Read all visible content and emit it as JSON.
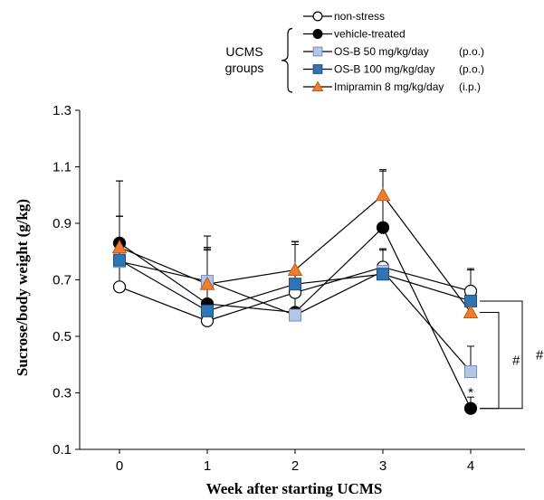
{
  "chart_data": {
    "type": "line",
    "xlabel": "Week after starting UCMS",
    "ylabel": "Sucrose/body weight (g/kg)",
    "x": [
      0,
      1,
      2,
      3,
      4
    ],
    "xlim": [
      -0.5,
      4.5
    ],
    "ylim": [
      0.1,
      1.3
    ],
    "yticks": [
      "0.1",
      "0.3",
      "0.5",
      "0.7",
      "0.9",
      "1.1",
      "1.3"
    ],
    "group_label_line1": "UCMS",
    "group_label_line2": "groups",
    "series": [
      {
        "name": "non-stress",
        "suffix": "",
        "marker": "circle-open",
        "fill": "#ffffff",
        "stroke": "#000000",
        "values": [
          0.675,
          0.555,
          0.655,
          0.745,
          0.66
        ],
        "err": [
          0.25,
          0.25,
          0.18,
          0.06,
          0.08
        ]
      },
      {
        "name": "vehicle-treated",
        "suffix": "",
        "marker": "circle-filled",
        "fill": "#000000",
        "stroke": "#000000",
        "values": [
          0.83,
          0.615,
          0.585,
          0.885,
          0.245
        ],
        "err": [
          0.22,
          0.2,
          0.25,
          0.2,
          0.04
        ]
      },
      {
        "name": "OS-B 50 mg/kg/day",
        "suffix": "(p.o.)",
        "marker": "square",
        "fill": "#b4c7e7",
        "stroke": "#6f8fbf",
        "values": [
          0.765,
          0.695,
          0.575,
          0.73,
          0.375
        ],
        "err": [
          0.16,
          0.16,
          0.26,
          0.08,
          0.09
        ]
      },
      {
        "name": "OS-B 100 mg/kg/day",
        "suffix": "(p.o.)",
        "marker": "square",
        "fill": "#2e75b6",
        "stroke": "#1f4e79",
        "values": [
          0.77,
          0.59,
          0.685,
          0.72,
          0.625
        ],
        "err": [
          0.28,
          0.22,
          0.14,
          0.09,
          0.11
        ]
      },
      {
        "name": "Imipramin 8 mg/kg/day",
        "suffix": "(i.p.)",
        "marker": "triangle",
        "fill": "#ed7d31",
        "stroke": "#c55a11",
        "values": [
          0.815,
          0.685,
          0.735,
          1.0,
          0.585
        ],
        "err": [
          0.11,
          0.17,
          0.1,
          0.09,
          0.15
        ]
      }
    ],
    "annotations": [
      {
        "text": "*",
        "x": 4,
        "y": 0.305
      },
      {
        "text": "#",
        "from_series": 4,
        "to_series": 1
      },
      {
        "text": "#",
        "from_series": 3,
        "to_series": 1
      }
    ],
    "legend_position": "top-right",
    "grid": false
  }
}
